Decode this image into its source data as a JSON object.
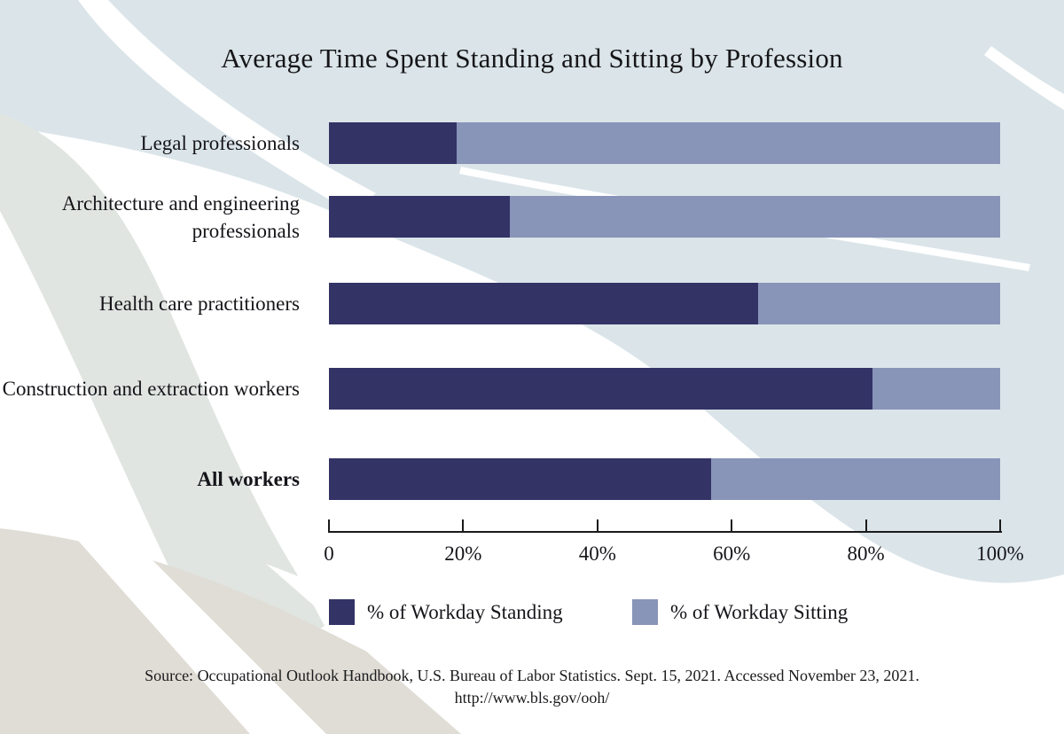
{
  "title": "Average Time Spent Standing and Sitting by Profession",
  "chart_data": {
    "type": "bar",
    "orientation": "horizontal",
    "stacked": true,
    "categories": [
      {
        "label": "Legal professionals",
        "bold": false
      },
      {
        "label": "Architecture and engineering professionals",
        "bold": false
      },
      {
        "label": "Health care practitioners",
        "bold": false
      },
      {
        "label": "Construction and extraction workers",
        "bold": false
      },
      {
        "label": "All workers",
        "bold": true
      }
    ],
    "series": [
      {
        "name": "% of Workday Standing",
        "color": "#333366",
        "values": [
          19,
          27,
          64,
          81,
          57
        ]
      },
      {
        "name": "% of Workday Sitting",
        "color": "#8894b8",
        "values": [
          81,
          73,
          36,
          19,
          43
        ]
      }
    ],
    "xlabel": "",
    "ylabel": "",
    "xlim": [
      0,
      100
    ],
    "x_ticks": [
      "0",
      "20%",
      "40%",
      "60%",
      "80%",
      "100%"
    ],
    "grid": false,
    "legend_position": "bottom"
  },
  "source": {
    "line1": "Source: Occupational Outlook Handbook, U.S. Bureau of Labor Statistics. Sept. 15, 2021. Accessed November 23, 2021.",
    "line2": "http://www.bls.gov/ooh/"
  },
  "colors": {
    "standing": "#333366",
    "sitting": "#8894b8",
    "background_blue": "#dbe5e9",
    "background_green": "#e0e5e1",
    "background_beige": "#dfddd5",
    "axis": "#1a1a1a",
    "text": "#15151a"
  }
}
